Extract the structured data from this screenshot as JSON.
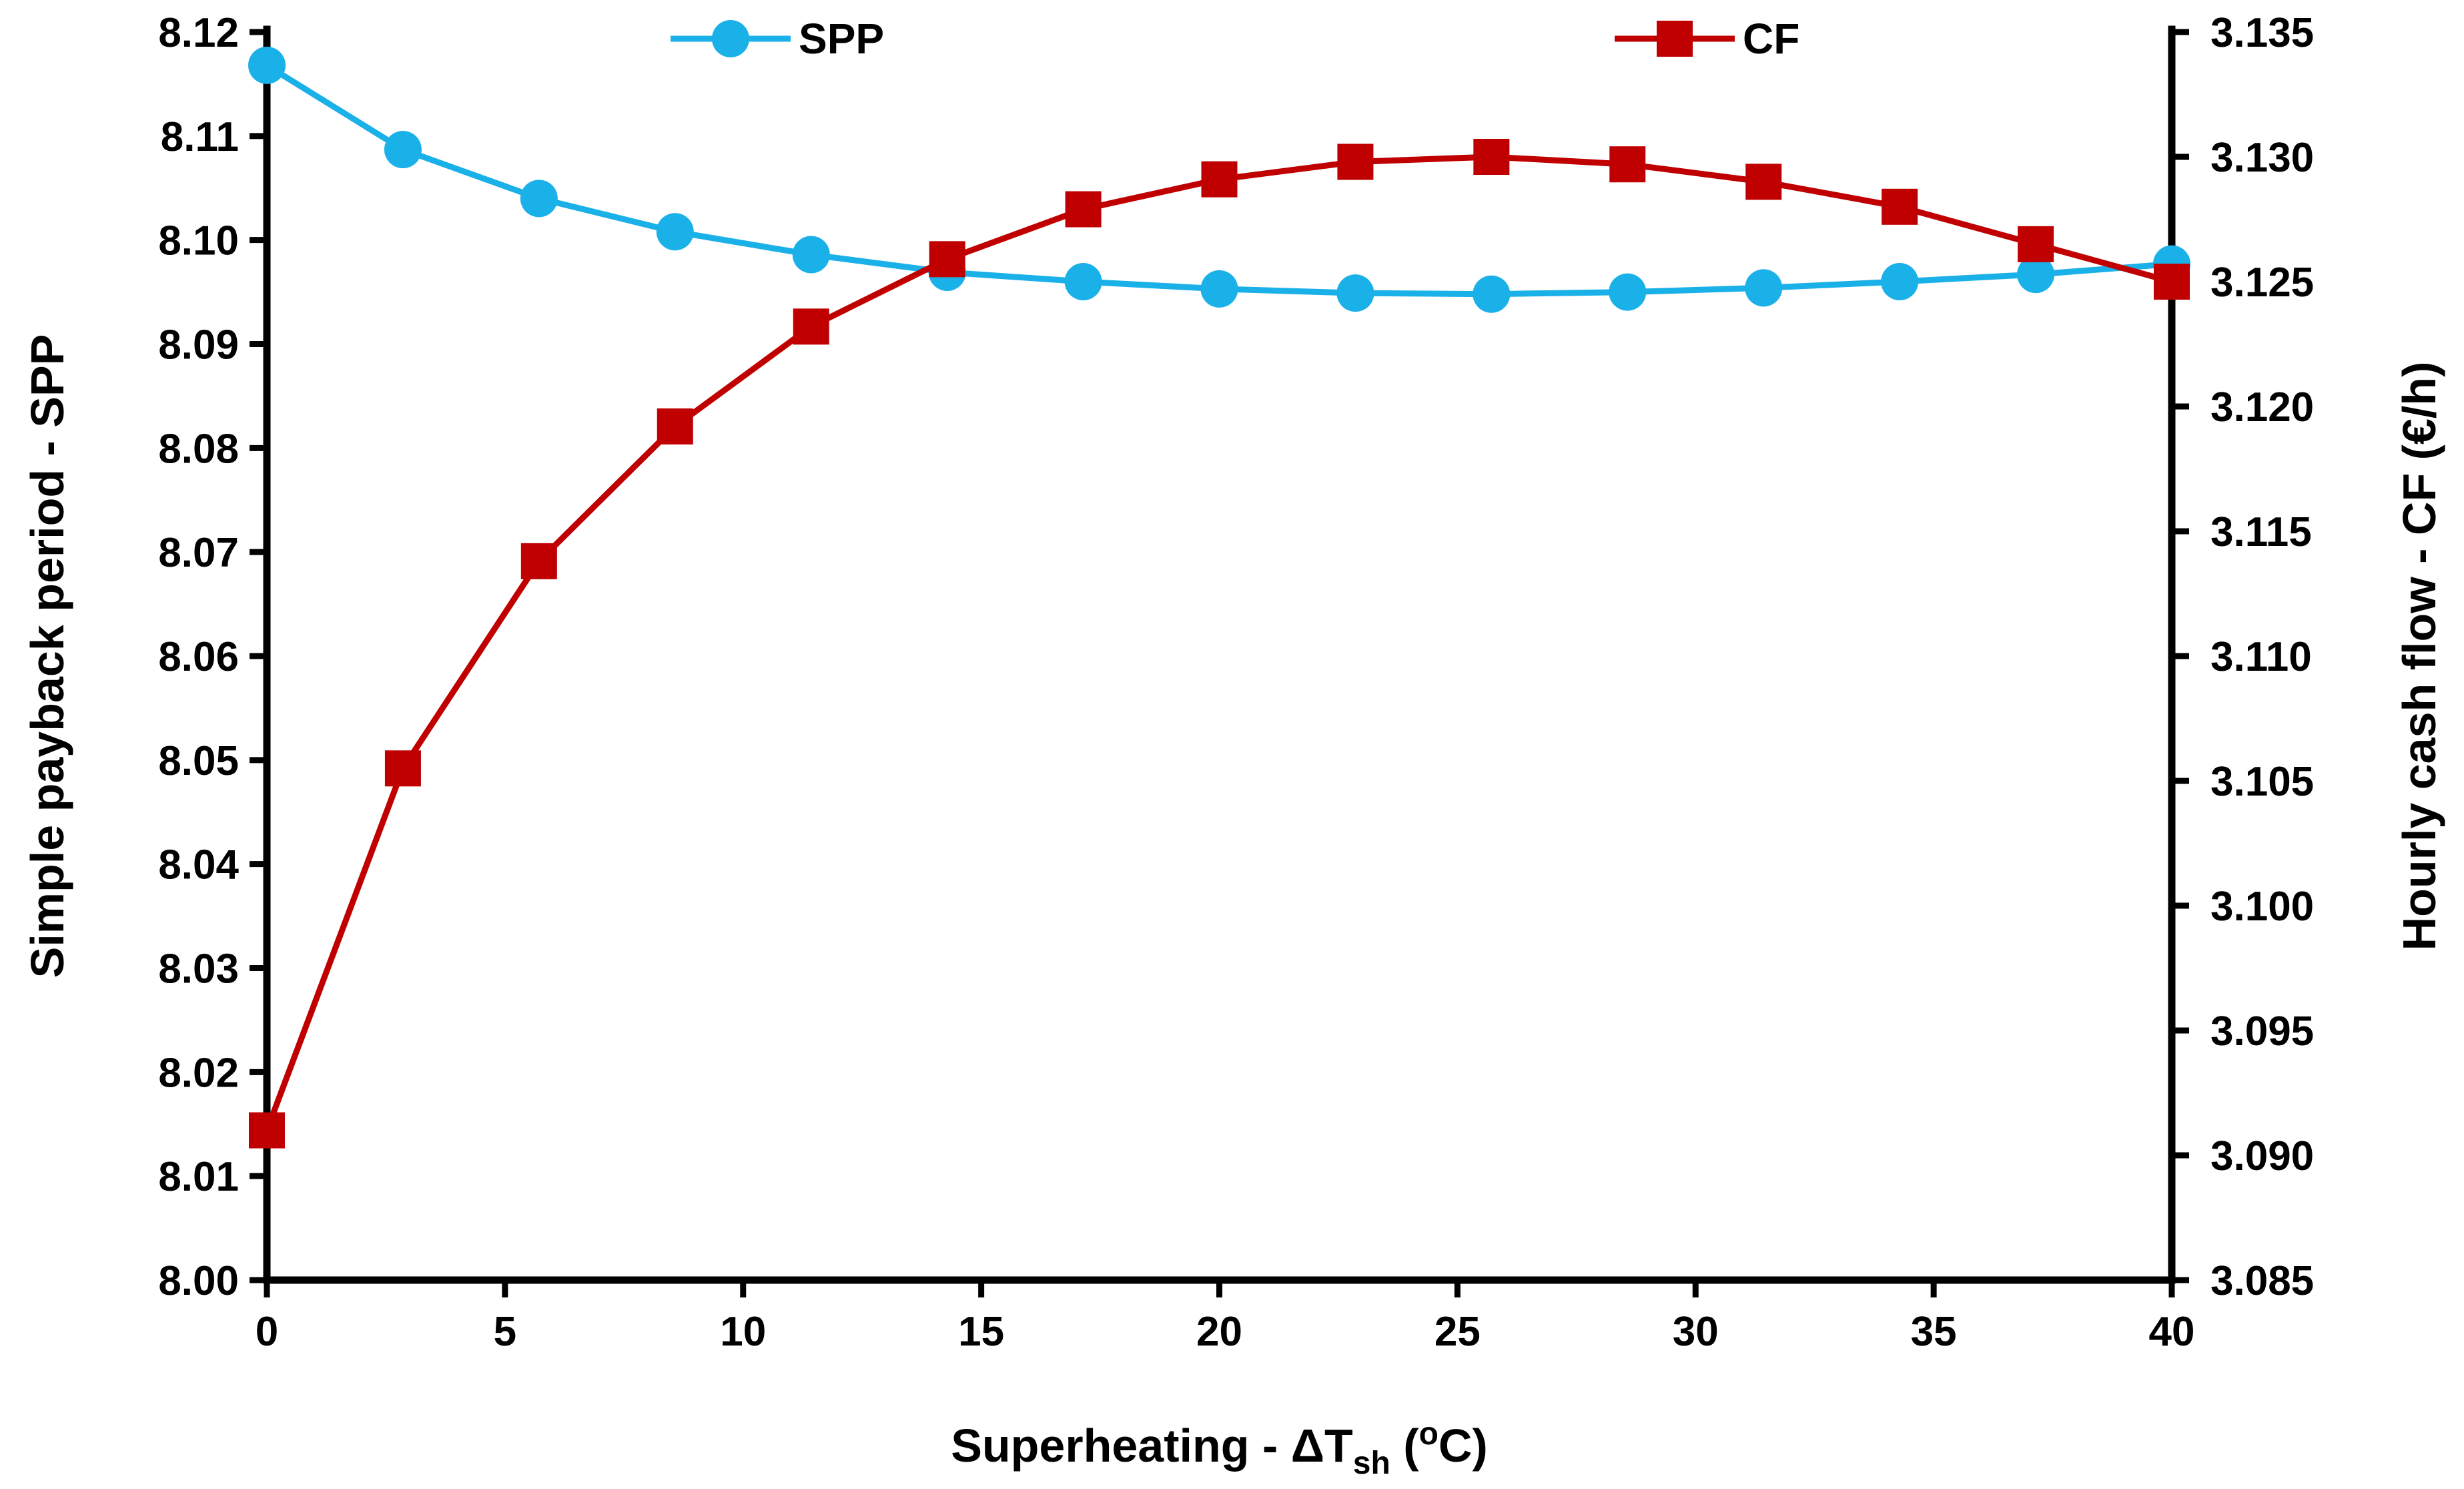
{
  "chart_data": {
    "type": "line",
    "x": [
      0,
      2.857,
      5.714,
      8.571,
      11.429,
      14.286,
      17.143,
      20,
      22.857,
      25.714,
      28.571,
      31.429,
      34.286,
      37.143,
      40
    ],
    "series": [
      {
        "name": "SPP",
        "axis": "left",
        "color": "#1AB0E8",
        "marker": "circle",
        "values": [
          8.1168,
          8.1087,
          8.104,
          8.1008,
          8.0986,
          8.0969,
          8.096,
          8.0953,
          8.0949,
          8.0948,
          8.095,
          8.0954,
          8.096,
          8.0967,
          8.0977
        ]
      },
      {
        "name": "CF",
        "axis": "right",
        "color": "#C00000",
        "marker": "square",
        "values": [
          3.091,
          3.1055,
          3.1138,
          3.1192,
          3.1232,
          3.1259,
          3.1279,
          3.1291,
          3.1298,
          3.13,
          3.1297,
          3.129,
          3.128,
          3.1265,
          3.125
        ]
      }
    ],
    "xlabel": {
      "main": "Superheating - ΔT",
      "sub": "sh",
      "paren_open": " (",
      "sup": "o",
      "unit": "C)"
    },
    "ylabel_left": "Simple payback period - SPP",
    "ylabel_right": "Hourly cash flow - CF (€/h)",
    "xlim": [
      0,
      40
    ],
    "ylim_left": [
      8.0,
      8.12
    ],
    "ylim_right": [
      3.085,
      3.135
    ],
    "x_ticks": [
      0,
      5,
      10,
      15,
      20,
      25,
      30,
      35,
      40
    ],
    "x_tick_labels": [
      "0",
      "5",
      "10",
      "15",
      "20",
      "25",
      "30",
      "35",
      "40"
    ],
    "y_left_ticks": [
      8.0,
      8.01,
      8.02,
      8.03,
      8.04,
      8.05,
      8.06,
      8.07,
      8.08,
      8.09,
      8.1,
      8.11,
      8.12
    ],
    "y_left_tick_labels": [
      "8.00",
      "8.01",
      "8.02",
      "8.03",
      "8.04",
      "8.05",
      "8.06",
      "8.07",
      "8.08",
      "8.09",
      "8.10",
      "8.11",
      "8.12"
    ],
    "y_right_ticks": [
      3.085,
      3.09,
      3.095,
      3.1,
      3.105,
      3.11,
      3.115,
      3.12,
      3.125,
      3.13,
      3.135
    ],
    "y_right_tick_labels": [
      "3.085",
      "3.090",
      "3.095",
      "3.100",
      "3.105",
      "3.110",
      "3.115",
      "3.120",
      "3.125",
      "3.130",
      "3.135"
    ],
    "grid": false,
    "legend": {
      "position": "top",
      "entries": [
        "SPP",
        "CF"
      ]
    }
  }
}
